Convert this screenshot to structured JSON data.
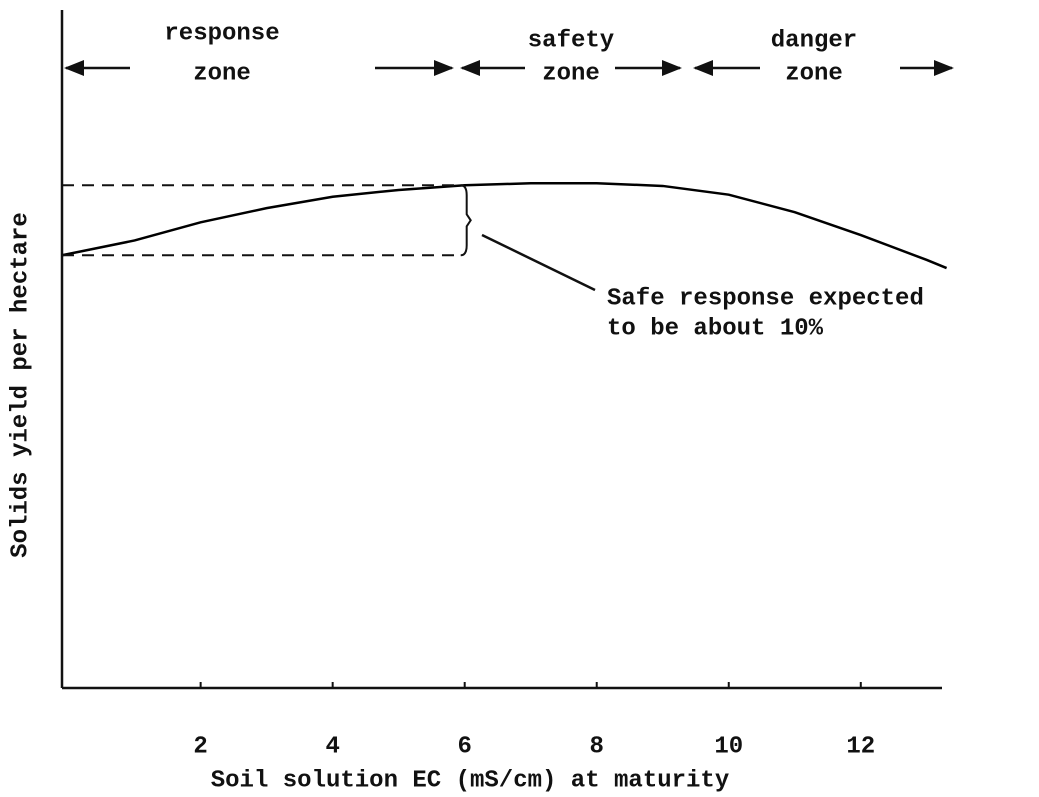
{
  "chart_data": {
    "type": "line",
    "ylabel": "Solids yield per hectare",
    "xlabel": "Soil solution EC (mS/cm) at maturity",
    "x": [
      -0.1,
      1,
      2,
      3,
      4,
      5,
      6,
      7,
      8,
      9,
      10,
      11,
      12,
      13,
      13.3
    ],
    "values": [
      64.3,
      66.5,
      69.2,
      71.3,
      73.0,
      74.0,
      74.7,
      75.0,
      75.0,
      74.6,
      73.3,
      70.7,
      67.3,
      63.6,
      62.4
    ],
    "color": "#000000",
    "xlim": [
      -0.1,
      13.2
    ],
    "ylim": [
      0,
      100
    ],
    "xticks": [
      2,
      4,
      6,
      8,
      10,
      12
    ],
    "zones": [
      {
        "lines": [
          "response",
          "zone"
        ]
      },
      {
        "lines": [
          "safety",
          "zone"
        ]
      },
      {
        "lines": [
          "danger",
          "zone"
        ]
      }
    ],
    "annotation": [
      "Safe response expected",
      "to be about 10%"
    ]
  }
}
